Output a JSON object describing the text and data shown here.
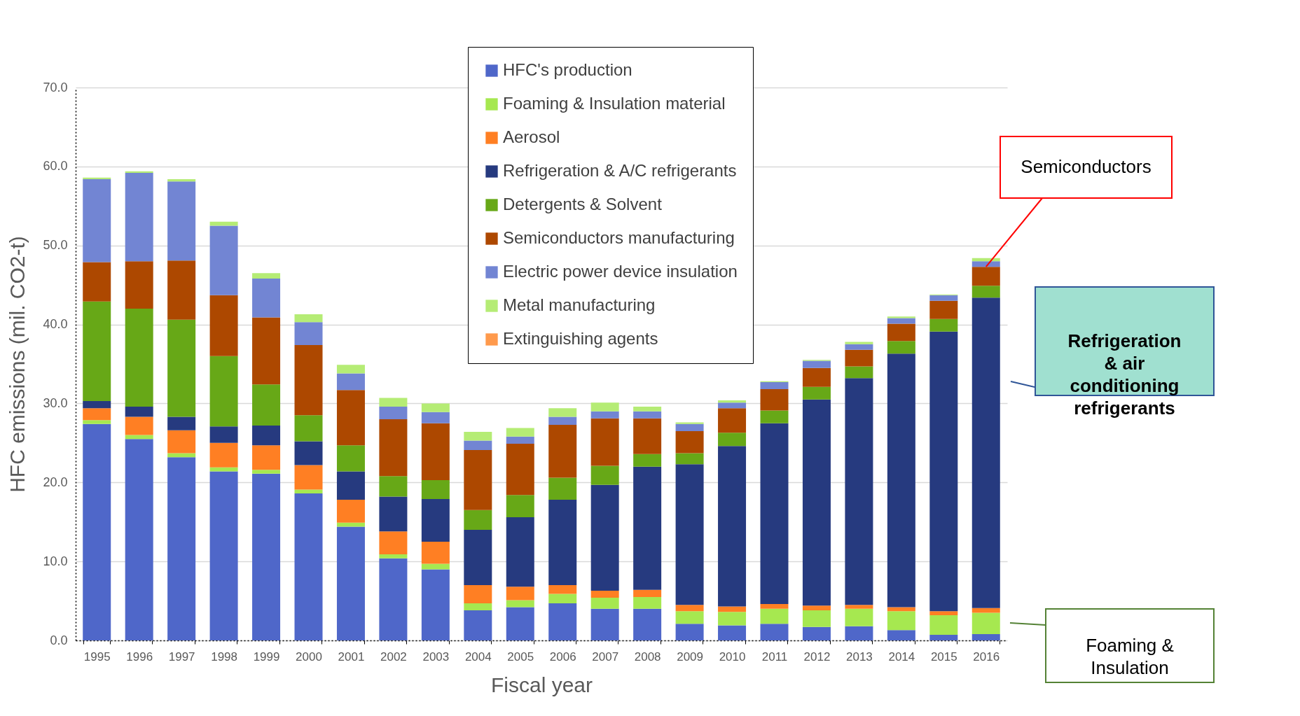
{
  "chart_data": {
    "type": "bar",
    "stacked": true,
    "xlabel": "Fiscal year",
    "ylabel": "HFC emissions (mil. CO2-t)",
    "categories": [
      "1995",
      "1996",
      "1997",
      "1998",
      "1999",
      "2000",
      "2001",
      "2002",
      "2003",
      "2004",
      "2005",
      "2006",
      "2007",
      "2008",
      "2009",
      "2010",
      "2011",
      "2012",
      "2013",
      "2014",
      "2015",
      "2016"
    ],
    "ylim": [
      0,
      70
    ],
    "yticks": [
      {
        "value": 0,
        "label": "0.0"
      },
      {
        "value": 10,
        "label": "10.0"
      },
      {
        "value": 20,
        "label": "20.0"
      },
      {
        "value": 30,
        "label": "30.0"
      },
      {
        "value": 40,
        "label": "40.0"
      },
      {
        "value": 50,
        "label": "50.0"
      },
      {
        "value": 60,
        "label": "60.0"
      },
      {
        "value": 70,
        "label": "70.0"
      }
    ],
    "grid": "y",
    "legend": "top",
    "series": [
      {
        "name": "HFC's production",
        "color": "#4f67c9",
        "values": [
          27.4,
          25.5,
          23.2,
          21.4,
          21.1,
          18.6,
          14.4,
          10.4,
          9.0,
          3.8,
          4.2,
          4.7,
          4.0,
          4.0,
          2.1,
          1.9,
          2.1,
          1.7,
          1.8,
          1.3,
          0.7,
          0.8
        ]
      },
      {
        "name": "Foaming & Insulation material",
        "color": "#a6e850",
        "values": [
          0.5,
          0.5,
          0.5,
          0.5,
          0.5,
          0.5,
          0.5,
          0.5,
          0.7,
          0.9,
          0.9,
          1.2,
          1.4,
          1.5,
          1.6,
          1.7,
          1.9,
          2.1,
          2.2,
          2.4,
          2.5,
          2.7
        ]
      },
      {
        "name": "Aerosol",
        "color": "#ff7f23",
        "values": [
          1.5,
          2.3,
          2.9,
          3.1,
          3.1,
          3.1,
          2.9,
          2.9,
          2.8,
          2.3,
          1.7,
          1.1,
          0.9,
          0.9,
          0.8,
          0.7,
          0.6,
          0.6,
          0.5,
          0.5,
          0.5,
          0.6
        ]
      },
      {
        "name": "Refrigeration & A/C refrigerants",
        "color": "#263a7f",
        "values": [
          0.9,
          1.3,
          1.7,
          2.1,
          2.5,
          3.0,
          3.6,
          4.4,
          5.4,
          7.0,
          8.8,
          10.8,
          13.4,
          15.6,
          17.8,
          20.3,
          22.9,
          26.1,
          28.7,
          32.1,
          35.4,
          39.3
        ]
      },
      {
        "name": "Detergents & Solvent",
        "color": "#67a817",
        "values": [
          12.6,
          12.4,
          12.3,
          8.9,
          5.2,
          3.3,
          3.3,
          2.6,
          2.4,
          2.5,
          2.8,
          2.8,
          2.4,
          1.6,
          1.4,
          1.7,
          1.6,
          1.6,
          1.5,
          1.6,
          1.6,
          1.5
        ]
      },
      {
        "name": "Semiconductors manufacturing",
        "color": "#ad4800",
        "values": [
          5.0,
          6.0,
          7.5,
          7.7,
          8.5,
          8.9,
          7.0,
          7.2,
          7.2,
          7.6,
          6.5,
          6.7,
          6.0,
          4.5,
          2.8,
          3.1,
          2.7,
          2.4,
          2.1,
          2.2,
          2.3,
          2.4
        ]
      },
      {
        "name": "Electric power device insulation",
        "color": "#7285d3",
        "values": [
          10.5,
          11.2,
          10.0,
          8.8,
          4.9,
          2.9,
          2.1,
          1.6,
          1.4,
          1.2,
          0.9,
          1.0,
          0.9,
          0.9,
          0.9,
          0.7,
          0.9,
          0.9,
          0.7,
          0.7,
          0.7,
          0.7
        ]
      },
      {
        "name": "Metal manufacturing",
        "color": "#b5ec75",
        "values": [
          0.2,
          0.2,
          0.3,
          0.5,
          0.7,
          1.0,
          1.1,
          1.1,
          1.1,
          1.1,
          1.1,
          1.1,
          1.1,
          0.6,
          0.2,
          0.3,
          0.1,
          0.1,
          0.3,
          0.2,
          0.1,
          0.4
        ]
      },
      {
        "name": "Extinguishing agents",
        "color": "#ff9a4c",
        "values": [
          0,
          0,
          0,
          0,
          0,
          0,
          0,
          0,
          0,
          0,
          0,
          0,
          0,
          0,
          0,
          0,
          0,
          0,
          0,
          0,
          0,
          0
        ]
      }
    ],
    "annotations": [
      {
        "text": "Semiconductors",
        "x": "2016",
        "y": 47.3
      },
      "Refrigeration\n& air\nconditioning\nrefrigerants",
      "Foaming &\nInsulation"
    ]
  }
}
